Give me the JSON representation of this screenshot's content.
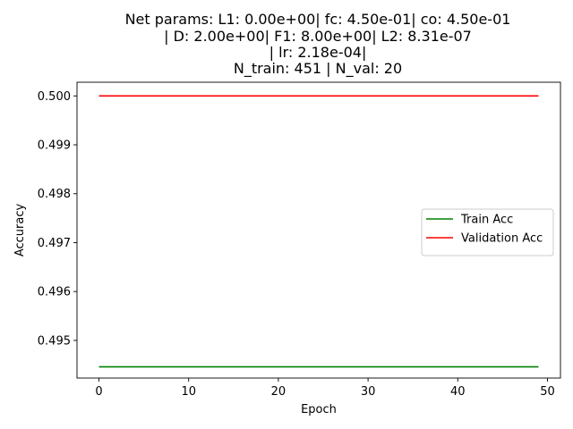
{
  "chart_data": {
    "type": "line",
    "title_lines": [
      "Net params: L1: 0.00e+00| fc: 4.50e-01| co: 4.50e-01",
      "| D: 2.00e+00| F1: 8.00e+00| L2: 8.31e-07",
      "| lr: 2.18e-04|",
      "N_train: 451 | N_val: 20"
    ],
    "xlabel": "Epoch",
    "ylabel": "Accuracy",
    "xlim": [
      -2.45,
      51.45
    ],
    "ylim": [
      0.49423,
      0.50028
    ],
    "x_ticks": [
      0,
      10,
      20,
      30,
      40,
      50
    ],
    "x_tick_labels": [
      "0",
      "10",
      "20",
      "30",
      "40",
      "50"
    ],
    "y_ticks": [
      0.495,
      0.496,
      0.497,
      0.498,
      0.499,
      0.5
    ],
    "y_tick_labels": [
      "0.495",
      "0.496",
      "0.497",
      "0.498",
      "0.499",
      "0.500"
    ],
    "grid": false,
    "legend_placement": "center-right",
    "series": [
      {
        "name": "Train Acc",
        "color": "#008000",
        "x": [
          0,
          49
        ],
        "y": [
          0.49446,
          0.49446
        ]
      },
      {
        "name": "Validation Acc",
        "color": "#ff0000",
        "x": [
          0,
          49
        ],
        "y": [
          0.5,
          0.5
        ]
      }
    ]
  }
}
